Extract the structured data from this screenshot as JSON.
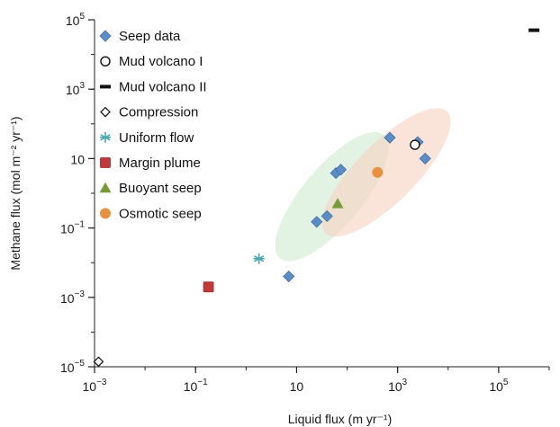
{
  "chart_data": {
    "type": "scatter",
    "x_scale": "log",
    "y_scale": "log",
    "xlim": [
      0.001,
      1000000
    ],
    "ylim": [
      1e-05,
      100000
    ],
    "xlabel": "Liquid flux (m yr⁻¹)",
    "ylabel": "Methane flux (mol m⁻² yr⁻¹)",
    "x_ticks": [
      {
        "value": 0.001,
        "base": "10",
        "exp": "−3"
      },
      {
        "value": 0.1,
        "base": "10",
        "exp": "−1"
      },
      {
        "value": 10,
        "base": "10",
        "exp": ""
      },
      {
        "value": 1000,
        "base": "10",
        "exp": "3"
      },
      {
        "value": 100000,
        "base": "10",
        "exp": "5"
      }
    ],
    "y_ticks": [
      {
        "value": 1e-05,
        "base": "10",
        "exp": "−5"
      },
      {
        "value": 0.001,
        "base": "10",
        "exp": "−3"
      },
      {
        "value": 0.1,
        "base": "10",
        "exp": "−1"
      },
      {
        "value": 10,
        "base": "10",
        "exp": ""
      },
      {
        "value": 1000,
        "base": "10",
        "exp": "3"
      },
      {
        "value": 100000,
        "base": "10",
        "exp": "5"
      }
    ],
    "legend_position": "top-left",
    "series": [
      {
        "name": "Seep data",
        "marker": "diamond",
        "color": "#5b8ec9",
        "points": [
          [
            7,
            0.004
          ],
          [
            25,
            0.15
          ],
          [
            40,
            0.22
          ],
          [
            60,
            3.8
          ],
          [
            75,
            4.8
          ],
          [
            700,
            40
          ],
          [
            2500,
            30
          ],
          [
            3500,
            10
          ]
        ]
      },
      {
        "name": "Mud volcano I",
        "marker": "open-circle",
        "color": "#111111",
        "points": [
          [
            2200,
            25
          ]
        ]
      },
      {
        "name": "Mud volcano II",
        "marker": "bar",
        "color": "#111111",
        "points": [
          [
            500000,
            50000
          ]
        ]
      },
      {
        "name": "Compression",
        "marker": "open-diamond",
        "color": "#111111",
        "points": [
          [
            0.0012,
            1.4e-05
          ]
        ]
      },
      {
        "name": "Uniform flow",
        "marker": "asterisk",
        "color": "#4aa8b0",
        "points": [
          [
            1.8,
            0.013
          ]
        ]
      },
      {
        "name": "Margin plume",
        "marker": "square",
        "color": "#c0393b",
        "points": [
          [
            0.18,
            0.002
          ]
        ]
      },
      {
        "name": "Buoyant seep",
        "marker": "triangle",
        "color": "#7a9a3a",
        "points": [
          [
            65,
            0.5
          ]
        ]
      },
      {
        "name": "Osmotic seep",
        "marker": "circle",
        "color": "#e8913f",
        "points": [
          [
            400,
            4
          ]
        ]
      }
    ],
    "regions": [
      {
        "label": "green-ellipse",
        "color": "#cfe9d0",
        "center": [
          50,
          0.8
        ],
        "half_width_decades": 1.6,
        "half_height_decades": 1.55,
        "angle_deg": -50
      },
      {
        "label": "orange-ellipse",
        "color": "#f6d2bf",
        "center": [
          600,
          4
        ],
        "half_width_decades": 1.7,
        "half_height_decades": 1.55,
        "angle_deg": -45
      }
    ]
  }
}
